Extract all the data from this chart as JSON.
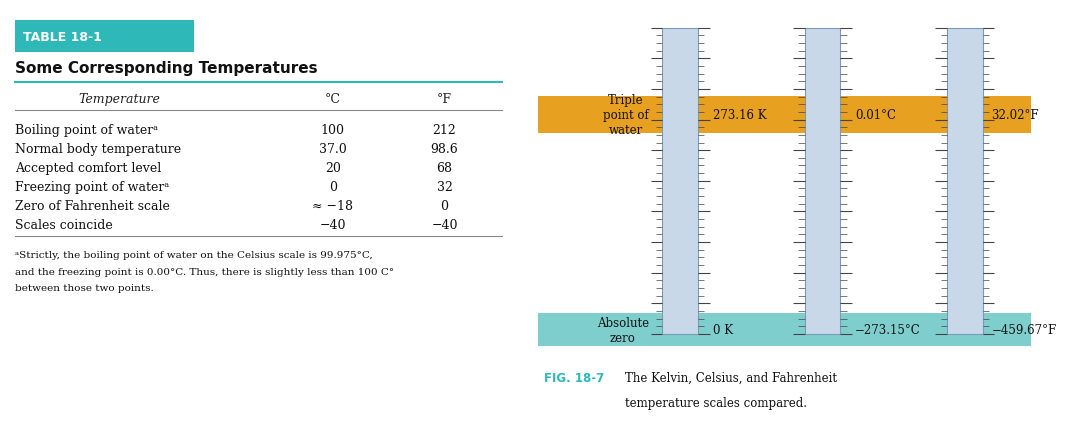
{
  "table_title": "TABLE 18-1",
  "table_subtitle": "Some Corresponding Temperatures",
  "table_header": [
    "Temperature",
    "°C",
    "°F"
  ],
  "table_rows": [
    [
      "Boiling point of waterᵃ",
      "100",
      "212"
    ],
    [
      "Normal body temperature",
      "37.0",
      "98.6"
    ],
    [
      "Accepted comfort level",
      "20",
      "68"
    ],
    [
      "Freezing point of waterᵃ",
      "0",
      "32"
    ],
    [
      "Zero of Fahrenheit scale",
      "≈ −18",
      "0"
    ],
    [
      "Scales coincide",
      "−40",
      "−40"
    ]
  ],
  "footnote_line1": "ᵃStrictly, the boiling point of water on the Celsius scale is 99.975°C,",
  "footnote_line2": "and the freezing point is 0.00°C. Thus, there is slightly less than 100 C°",
  "footnote_line3": "between those two points.",
  "title_bg_color": "#2eb8b8",
  "title_text_color": "#ffffff",
  "teal_line_color": "#2eb8b8",
  "triple_point_color": "#e8a020",
  "abs_zero_color": "#7ecece",
  "thermometer_fill": "#c8d8e8",
  "thermometer_border": "#7a9ab8",
  "tick_color": "#444444",
  "bg_color": "#ffffff",
  "triple_point_label": "Triple\npoint of\nwater",
  "triple_point_K": "273.16 K",
  "triple_point_C": "0.01°C",
  "triple_point_F": "32.02°F",
  "abs_zero_label": "Absolute\nzero",
  "abs_zero_K": "0 K",
  "abs_zero_C": "−273.15°C",
  "abs_zero_F": "−459.67°F",
  "fig_label_color": "#2eb8b8",
  "fig_bold": "FIG. 18-7",
  "fig_text1": "The Kelvin, Celsius, and Fahrenheit",
  "fig_text2": "temperature scales compared."
}
